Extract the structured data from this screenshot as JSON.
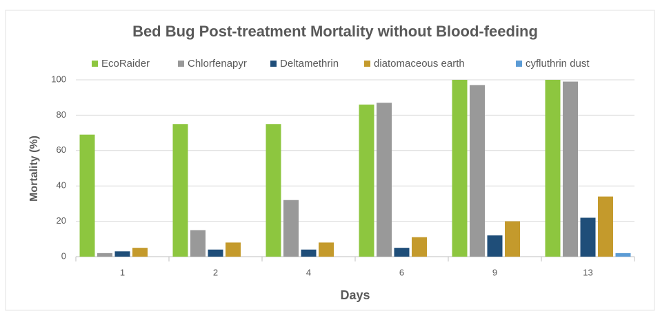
{
  "chart_data": {
    "type": "bar",
    "title": "Bed Bug Post-treatment Mortality without Blood-feeding",
    "x_label": "Days",
    "y_label": "Mortality (%)",
    "categories": [
      "1",
      "2",
      "4",
      "6",
      "9",
      "13"
    ],
    "series": [
      {
        "name": "EcoRaider",
        "color": "#8dc63f",
        "values": [
          69,
          75,
          75,
          86,
          100,
          100
        ]
      },
      {
        "name": "Chlorfenapyr",
        "color": "#999999",
        "values": [
          2,
          15,
          32,
          87,
          97,
          99
        ]
      },
      {
        "name": "Deltamethrin",
        "color": "#1f4e79",
        "values": [
          3,
          4,
          4,
          5,
          12,
          22
        ]
      },
      {
        "name": "diatomaceous earth",
        "color": "#c49a2c",
        "values": [
          5,
          8,
          8,
          11,
          20,
          34
        ]
      },
      {
        "name": "cyfluthrin dust",
        "color": "#5b9bd5",
        "values": [
          0,
          0,
          0,
          0,
          0,
          2
        ]
      }
    ],
    "ylim": [
      0,
      100
    ],
    "yticks": [
      0,
      20,
      40,
      60,
      80,
      100
    ],
    "grid": true,
    "legend": "top"
  }
}
